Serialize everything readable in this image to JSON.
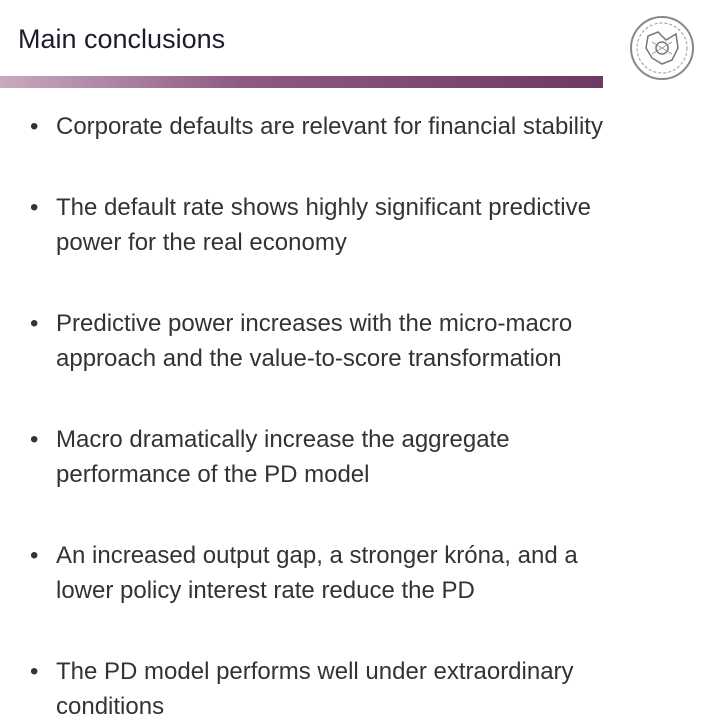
{
  "header": {
    "title": "Main conclusions"
  },
  "bullets": [
    [
      "Corporate defaults are relevant for financial stability"
    ],
    [
      "The default rate shows highly significant predictive",
      "power for the real economy"
    ],
    [
      "Predictive power increases with the micro-macro",
      "approach and the value-to-score transformation"
    ],
    [
      "Macro dramatically increase the aggregate",
      "performance of the PD model"
    ],
    [
      "An increased output gap, a stronger króna, and a",
      "lower policy interest rate reduce the PD"
    ],
    [
      "The PD model performs well under extraordinary",
      "conditions"
    ]
  ]
}
